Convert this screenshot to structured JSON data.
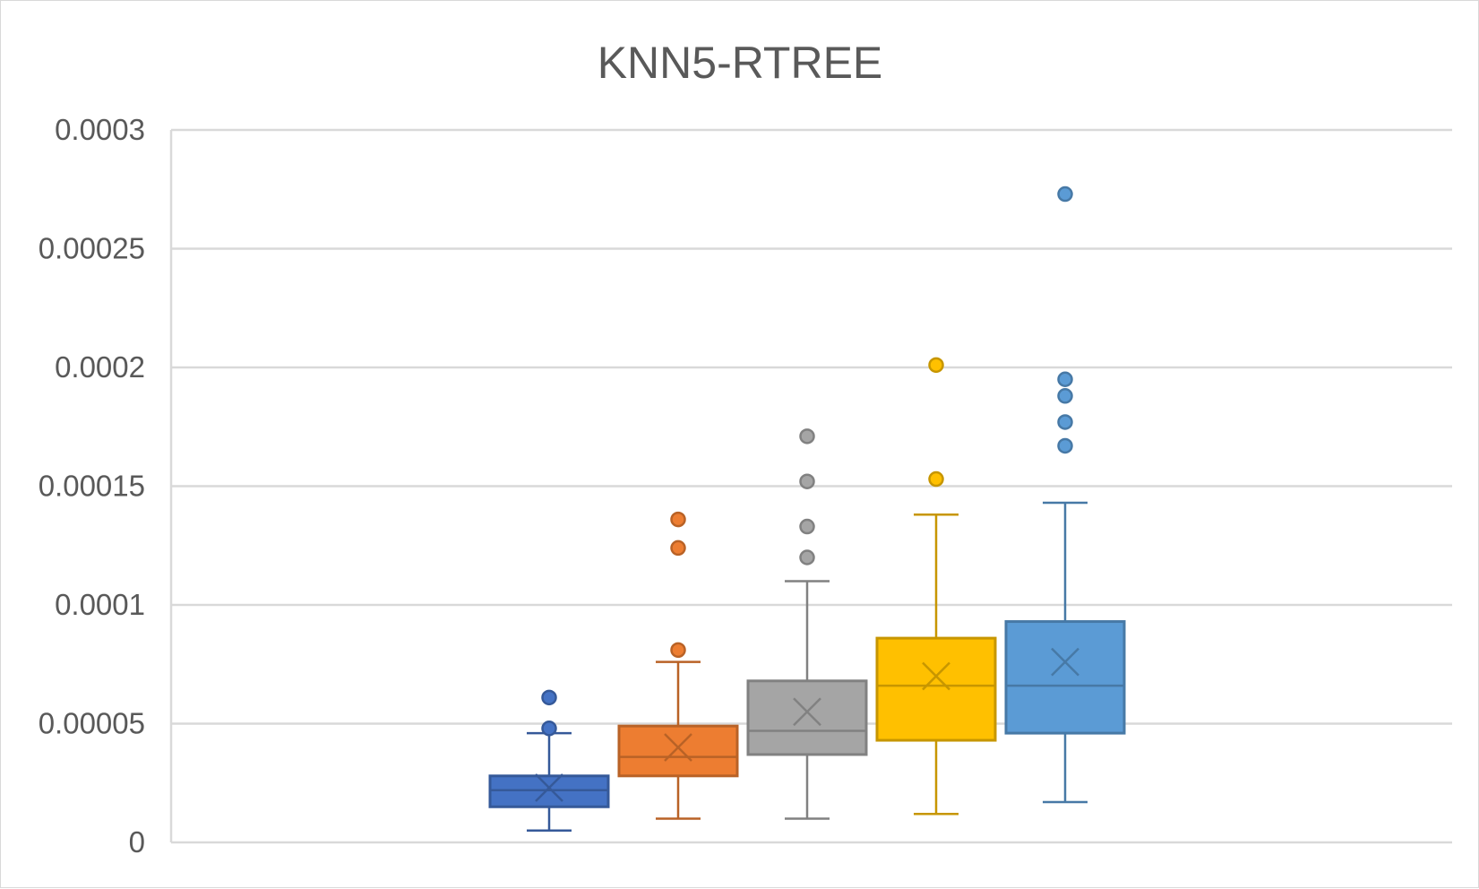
{
  "chart_data": {
    "type": "box",
    "title": "KNN5-RTREE",
    "xlabel": "",
    "ylabel": "",
    "ylim": [
      0,
      0.0003
    ],
    "yticks": [
      "0",
      "0.00005",
      "0.0001",
      "0.00015",
      "0.0002",
      "0.00025",
      "0.0003"
    ],
    "grid": true,
    "legend": "none",
    "series": [
      {
        "color": "#4472C4",
        "min": 5e-06,
        "q1": 1.5e-05,
        "median": 2.2e-05,
        "q3": 2.8e-05,
        "max": 4.6e-05,
        "mean": 2.3e-05,
        "outliers": [
          4.8e-05,
          6.1e-05
        ]
      },
      {
        "color": "#ED7D31",
        "min": 1e-05,
        "q1": 2.8e-05,
        "median": 3.6e-05,
        "q3": 4.9e-05,
        "max": 7.6e-05,
        "mean": 4e-05,
        "outliers": [
          8.1e-05,
          0.000124,
          0.000136
        ]
      },
      {
        "color": "#A5A5A5",
        "min": 1e-05,
        "q1": 3.7e-05,
        "median": 4.7e-05,
        "q3": 6.8e-05,
        "max": 0.00011,
        "mean": 5.5e-05,
        "outliers": [
          0.00012,
          0.000133,
          0.000152,
          0.000171
        ]
      },
      {
        "color": "#FFC000",
        "min": 1.2e-05,
        "q1": 4.3e-05,
        "median": 6.6e-05,
        "q3": 8.6e-05,
        "max": 0.000138,
        "mean": 7e-05,
        "outliers": [
          0.000153,
          0.000201
        ]
      },
      {
        "color": "#5B9BD5",
        "min": 1.7e-05,
        "q1": 4.6e-05,
        "median": 6.6e-05,
        "q3": 9.3e-05,
        "max": 0.000143,
        "mean": 7.6e-05,
        "outliers": [
          0.000167,
          0.000177,
          0.000188,
          0.000195,
          0.000273
        ]
      }
    ]
  }
}
